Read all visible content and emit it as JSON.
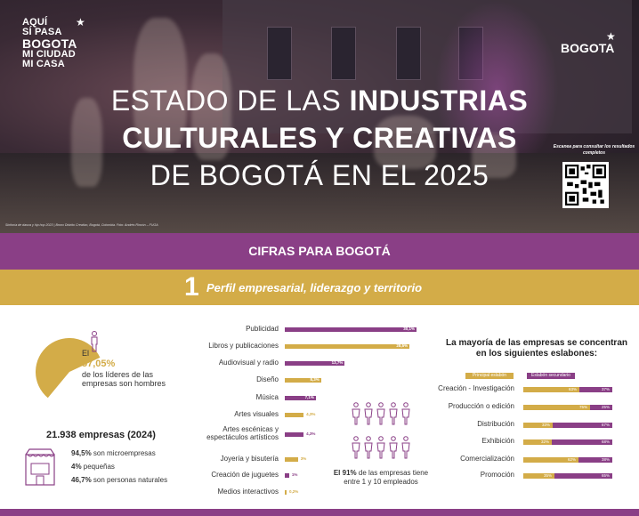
{
  "hero": {
    "logo_left_lines": [
      "AQUÍ",
      "SÍ PASA",
      "BOGOTA",
      "MI CIUDAD",
      "MI CASA"
    ],
    "logo_right": "BOGOTA",
    "title_line1_light": "ESTADO DE LAS ",
    "title_line1_bold": "INDUSTRIAS",
    "title_line2_bold": "CULTURALES Y CREATIVAS",
    "title_line3_light": "DE BOGOTÁ EN EL 2025",
    "qr_text": "Escanea para consultar los resultados completos",
    "caption": "Sinfonía de danza y hip hop 2023 | Bronx Distrito Creativo, Bogotá, Colombia. Foto: Andrés Rincón – FUGA"
  },
  "section_band": "CIFRAS PARA BOGOTÁ",
  "section": {
    "number": "1",
    "title": "Perfil empresarial, liderazgo y territorio"
  },
  "leaders": {
    "prefix": "El",
    "percent": "57,05%",
    "text": "de los líderes de las empresas son hombres",
    "share": 0.5705
  },
  "companies": {
    "title": "21.938 empresas (2024)",
    "lines": [
      {
        "value": "94,5%",
        "text": " son microempresas"
      },
      {
        "value": "4%",
        "text": " pequeñas"
      },
      {
        "value": "46,7%",
        "text": " son personas naturales"
      }
    ]
  },
  "chart_data": {
    "type": "bar",
    "orientation": "horizontal",
    "categories": [
      "Publicidad",
      "Libros y publicaciones",
      "Audiovisual y radio",
      "Diseño",
      "Música",
      "Artes visuales",
      "Artes escénicas y espectáculos artísticos",
      "Joyería y bisutería",
      "Creación de juguetes",
      "Medios interactivos"
    ],
    "values": [
      30.1,
      28.5,
      13.7,
      8.3,
      7.1,
      4.3,
      4.3,
      3.0,
      1.0,
      0.2
    ],
    "value_labels": [
      "30,1%",
      "28,5%",
      "13,7%",
      "8,3%",
      "7,1%",
      "4,3%",
      "4,3%",
      "3%",
      "1%",
      "0,2%"
    ],
    "colors": [
      "#8a3f86",
      "#d3ac48",
      "#8a3f86",
      "#d3ac48",
      "#8a3f86",
      "#d3ac48",
      "#8a3f86",
      "#d3ac48",
      "#8a3f86",
      "#d3ac48"
    ]
  },
  "employees_note": {
    "bold": "El 91%",
    "text": " de las empresas tiene entre 1 y 10 empleados"
  },
  "links": {
    "title": "La mayoría de las empresas se concentran en los siguientes eslabones:",
    "legend_primary": "Principal eslabón",
    "legend_secondary": "Eslabón secundario",
    "rows": [
      {
        "label": "Creación - Investigación",
        "primary": 63,
        "secondary": 37,
        "primary_label": "63%",
        "secondary_label": "37%"
      },
      {
        "label": "Producción o edición",
        "primary": 75,
        "secondary": 25,
        "primary_label": "75%",
        "secondary_label": "25%"
      },
      {
        "label": "Distribución",
        "primary": 33,
        "secondary": 67,
        "primary_label": "33%",
        "secondary_label": "67%"
      },
      {
        "label": "Exhibición",
        "primary": 32,
        "secondary": 68,
        "primary_label": "32%",
        "secondary_label": "68%"
      },
      {
        "label": "Comercialización",
        "primary": 62,
        "secondary": 38,
        "primary_label": "62%",
        "secondary_label": "38%"
      },
      {
        "label": "Promoción",
        "primary": 35,
        "secondary": 65,
        "primary_label": "35%",
        "secondary_label": "65%"
      }
    ]
  },
  "colors": {
    "purple": "#8a3f86",
    "gold": "#d3ac48"
  }
}
